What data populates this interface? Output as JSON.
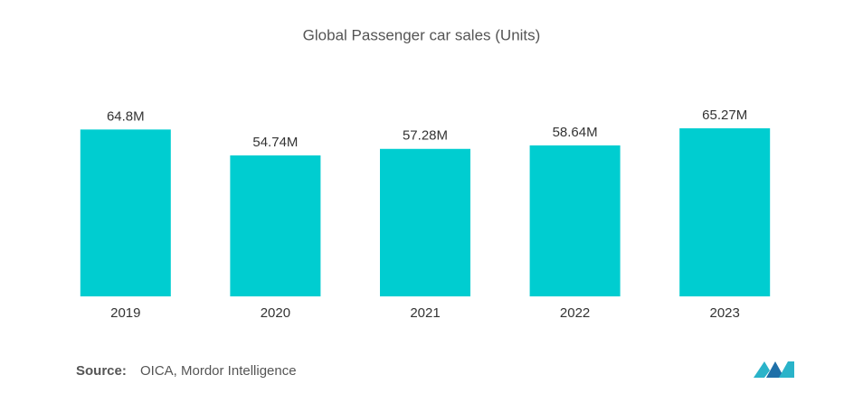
{
  "chart_data": {
    "type": "bar",
    "title": "Global Passenger car sales (Units)",
    "categories": [
      "2019",
      "2020",
      "2021",
      "2022",
      "2023"
    ],
    "values": [
      64.8,
      54.74,
      57.28,
      58.64,
      65.27
    ],
    "value_labels": [
      "64.8M",
      "54.74M",
      "57.28M",
      "58.64M",
      "65.27M"
    ],
    "color": "#00cdd0"
  },
  "footer": {
    "source_label": "Source:",
    "source": "OICA, Mordor Intelligence"
  }
}
